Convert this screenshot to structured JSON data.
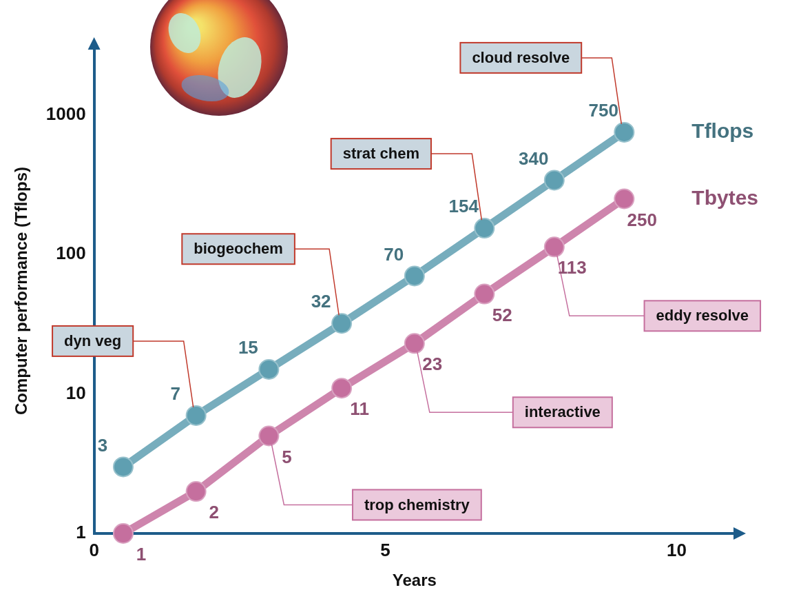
{
  "chart_data": {
    "type": "line",
    "x_label": "Years",
    "y_label": "Computer performance (Tflops)",
    "x": [
      0.5,
      1.75,
      3,
      4.25,
      5.5,
      6.7,
      7.9,
      9.1
    ],
    "xlim": [
      0,
      11
    ],
    "xticks": [
      0,
      5,
      10
    ],
    "ylim": [
      1,
      3000
    ],
    "yticks": [
      1,
      10,
      100,
      1000
    ],
    "log": "y",
    "grid": false,
    "data_labels": true,
    "marker": "circle",
    "series": [
      {
        "name": "Tflops",
        "color": "#5f9fb1",
        "values": [
          3,
          7,
          15,
          32,
          70,
          154,
          340,
          750
        ]
      },
      {
        "name": "Tbytes",
        "color": "#c56f9e",
        "values": [
          1,
          2,
          5,
          11,
          23,
          52,
          113,
          250
        ]
      }
    ],
    "annotations": [
      {
        "text": "dyn veg",
        "series": "Tflops",
        "x": 1.75
      },
      {
        "text": "biogeochem",
        "series": "Tflops",
        "x": 4.25
      },
      {
        "text": "strat chem",
        "series": "Tflops",
        "x": 6.7
      },
      {
        "text": "cloud resolve",
        "series": "Tflops",
        "x": 9.1
      },
      {
        "text": "trop chemistry",
        "series": "Tbytes",
        "x": 3
      },
      {
        "text": "interactive",
        "series": "Tbytes",
        "x": 5.5
      },
      {
        "text": "eddy resolve",
        "series": "Tbytes",
        "x": 7.9
      }
    ]
  }
}
